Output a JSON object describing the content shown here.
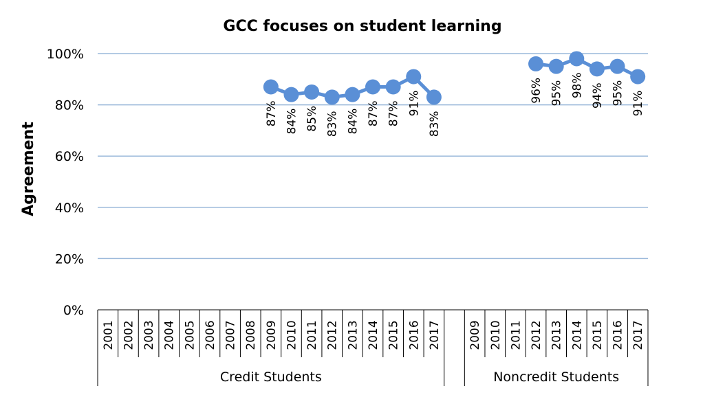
{
  "chart_data": {
    "type": "line",
    "title": "GCC focuses on student learning",
    "ylabel": "Agreement",
    "xlabel": "",
    "ylim": [
      0,
      100
    ],
    "yticks": [
      "0%",
      "20%",
      "40%",
      "60%",
      "80%",
      "100%"
    ],
    "grid": true,
    "legend": "none",
    "colors": {
      "series": "#5a8fd6",
      "grid": "#9ab8da"
    },
    "groups": [
      {
        "name": "Credit Students",
        "categories": [
          "2001",
          "2002",
          "2003",
          "2004",
          "2005",
          "2006",
          "2007",
          "2008",
          "2009",
          "2010",
          "2011",
          "2012",
          "2013",
          "2014",
          "2015",
          "2016",
          "2017"
        ],
        "values": [
          null,
          null,
          null,
          null,
          null,
          null,
          null,
          null,
          87,
          84,
          85,
          83,
          84,
          87,
          87,
          91,
          83
        ],
        "labels": [
          "",
          "",
          "",
          "",
          "",
          "",
          "",
          "",
          "87%",
          "84%",
          "85%",
          "83%",
          "84%",
          "87%",
          "87%",
          "91%",
          "83%"
        ],
        "label_position": "below"
      },
      {
        "name": "Noncredit Students",
        "categories": [
          "2009",
          "2010",
          "2011",
          "2012",
          "2013",
          "2014",
          "2015",
          "2016",
          "2017"
        ],
        "values": [
          null,
          null,
          null,
          96,
          95,
          98,
          94,
          95,
          91
        ],
        "labels": [
          "",
          "",
          "",
          "96%",
          "95%",
          "98%",
          "94%",
          "95%",
          "91%"
        ],
        "label_position": "below"
      }
    ]
  }
}
